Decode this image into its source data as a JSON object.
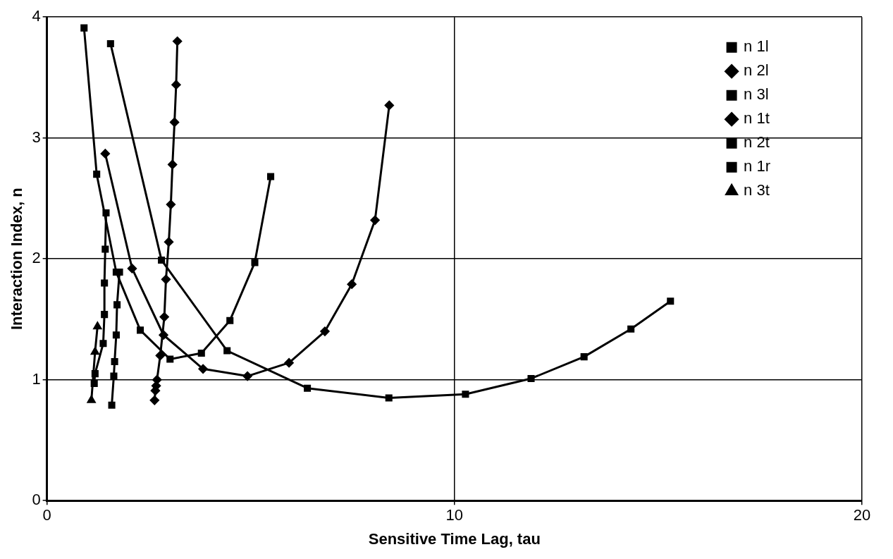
{
  "chart_data": {
    "type": "line",
    "xlabel": "Sensitive Time Lag, tau",
    "ylabel": "Interaction Index, n",
    "xlim": [
      0,
      20
    ],
    "xticks": [
      0,
      10,
      20
    ],
    "ylim": [
      0,
      4
    ],
    "yticks": [
      0,
      1,
      2,
      3,
      4
    ],
    "grid": true,
    "legend": "top right",
    "line_style": "solid",
    "series": [
      {
        "name": "n 1l",
        "color": "#000000",
        "marker": "square",
        "x": [
          1.56,
          2.81,
          4.42,
          6.39,
          8.39,
          10.27,
          11.88,
          13.18,
          14.33,
          15.3
        ],
        "values": [
          3.78,
          1.99,
          1.24,
          0.93,
          0.85,
          0.88,
          1.01,
          1.19,
          1.42,
          1.65
        ]
      },
      {
        "name": "n 2l",
        "color": "#000000",
        "marker": "diamond",
        "x": [
          1.43,
          2.09,
          2.86,
          3.83,
          4.92,
          5.94,
          6.82,
          7.48,
          8.05,
          8.4
        ],
        "values": [
          2.87,
          1.92,
          1.37,
          1.09,
          1.03,
          1.14,
          1.4,
          1.79,
          2.32,
          3.27
        ]
      },
      {
        "name": "n 3l",
        "color": "#000000",
        "marker": "square",
        "x": [
          0.91,
          1.22,
          1.7,
          2.29,
          3.02,
          3.79,
          4.49,
          5.1,
          5.49
        ],
        "values": [
          3.91,
          2.7,
          1.89,
          1.41,
          1.17,
          1.22,
          1.49,
          1.97,
          2.68
        ]
      },
      {
        "name": "n 1t",
        "color": "#000000",
        "marker": "diamond",
        "x": [
          3.2,
          3.17,
          3.13,
          3.08,
          3.04,
          2.99,
          2.92,
          2.88,
          2.78,
          2.7,
          2.68,
          2.66,
          2.64
        ],
        "values": [
          3.8,
          3.44,
          3.13,
          2.78,
          2.45,
          2.14,
          1.83,
          1.52,
          1.2,
          1.0,
          0.95,
          0.91,
          0.83
        ]
      },
      {
        "name": "n 2t",
        "color": "#000000",
        "marker": "square",
        "x": [
          1.59,
          1.64,
          1.66,
          1.7,
          1.72,
          1.78
        ],
        "values": [
          0.79,
          1.03,
          1.15,
          1.37,
          1.62,
          1.89
        ]
      },
      {
        "name": "n 1r",
        "color": "#000000",
        "marker": "square",
        "x": [
          1.45,
          1.43,
          1.41,
          1.41,
          1.38,
          1.18,
          1.16
        ],
        "values": [
          2.38,
          2.08,
          1.8,
          1.54,
          1.3,
          1.05,
          0.97
        ]
      },
      {
        "name": "n 3t",
        "color": "#000000",
        "marker": "triangle",
        "x": [
          1.09,
          1.18,
          1.24
        ],
        "values": [
          0.83,
          1.23,
          1.44
        ]
      }
    ]
  }
}
